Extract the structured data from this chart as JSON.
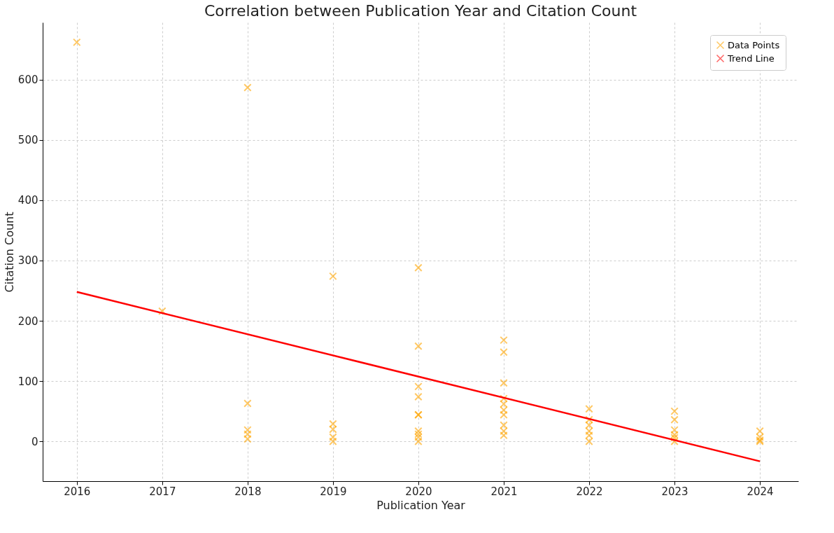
{
  "chart_data": {
    "type": "scatter",
    "title": "Correlation between Publication Year and Citation Count",
    "xlabel": "Publication Year",
    "ylabel": "Citation Count",
    "xlim": [
      2015.6,
      2024.45
    ],
    "ylim": [
      -66,
      695
    ],
    "xticks": [
      2016,
      2017,
      2018,
      2019,
      2020,
      2021,
      2022,
      2023,
      2024
    ],
    "yticks": [
      0,
      100,
      200,
      300,
      400,
      500,
      600
    ],
    "grid": true,
    "legend": "top right",
    "series": [
      {
        "name": "Data Points",
        "color": "#ffa500",
        "marker": "cross",
        "x": [
          2016,
          2017,
          2018,
          2018,
          2018,
          2018,
          2018,
          2019,
          2019,
          2019,
          2019,
          2019,
          2020,
          2020,
          2020,
          2020,
          2020,
          2020,
          2020,
          2020,
          2020,
          2020,
          2021,
          2021,
          2021,
          2021,
          2021,
          2021,
          2021,
          2021,
          2021,
          2021,
          2022,
          2022,
          2022,
          2022,
          2022,
          2022,
          2023,
          2023,
          2023,
          2023,
          2023,
          2023,
          2024,
          2024,
          2024,
          2024
        ],
        "values": [
          662,
          216,
          587,
          63,
          19,
          12,
          4,
          274,
          29,
          20,
          7,
          0,
          288,
          158,
          91,
          74,
          44,
          44,
          17,
          12,
          7,
          0,
          168,
          148,
          97,
          71,
          62,
          52,
          44,
          27,
          17,
          10,
          54,
          36,
          27,
          17,
          10,
          0,
          50,
          36,
          19,
          11,
          6,
          0,
          17,
          7,
          2,
          0
        ]
      },
      {
        "name": "Trend Line",
        "type": "line",
        "color": "#ff0000",
        "line_style": "solid",
        "x": [
          2016,
          2024
        ],
        "values": [
          248,
          -33
        ]
      }
    ]
  }
}
